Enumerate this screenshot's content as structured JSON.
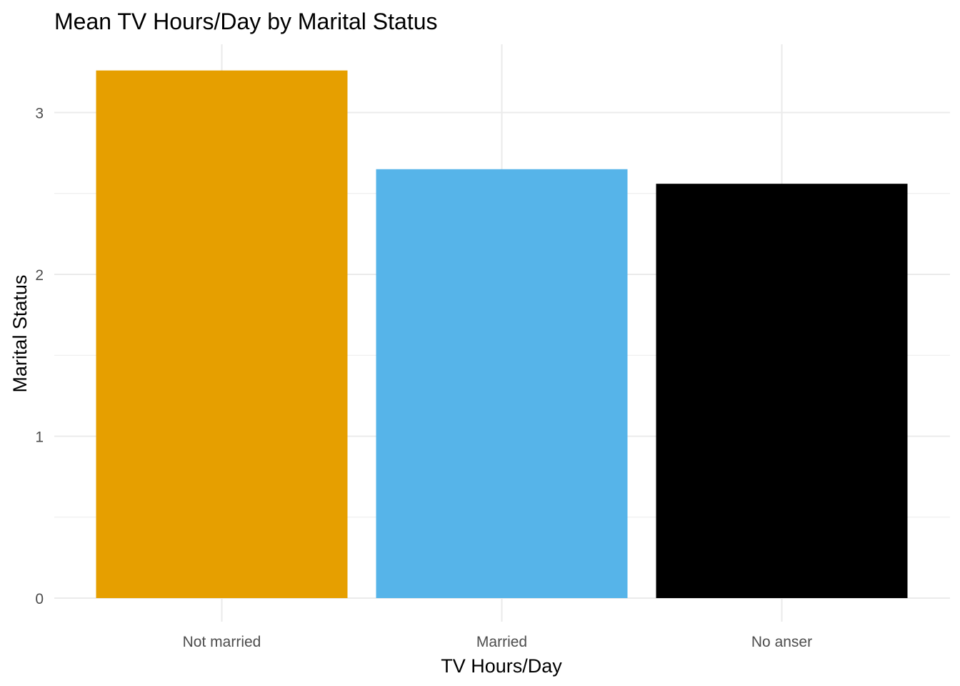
{
  "chart_data": {
    "type": "bar",
    "title": "Mean TV Hours/Day by Marital Status",
    "xlabel": "TV Hours/Day",
    "ylabel": "Marital Status",
    "categories": [
      "Not married",
      "Married",
      "No anser"
    ],
    "values": [
      3.26,
      2.65,
      2.56
    ],
    "colors": [
      "#E69F00",
      "#56B4E9",
      "#000000"
    ],
    "ylim": [
      0,
      3.3
    ],
    "yticks": [
      0,
      1,
      2,
      3
    ],
    "ytick_labels": [
      "0",
      "1",
      "2",
      "3"
    ],
    "grid": true,
    "legend": "none"
  }
}
